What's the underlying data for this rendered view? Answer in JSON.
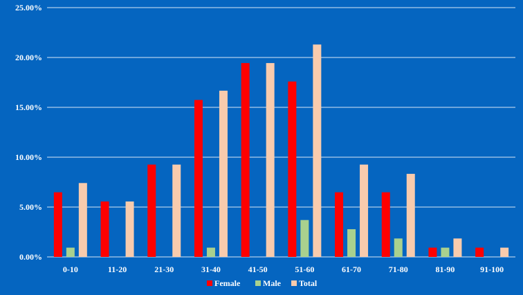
{
  "chart_data": {
    "type": "bar",
    "title": "",
    "xlabel": "",
    "ylabel": "",
    "categories": [
      "0-10",
      "11-20",
      "21-30",
      "31-40",
      "41-50",
      "51-60",
      "61-70",
      "71-80",
      "81-90",
      "91-100"
    ],
    "series": [
      {
        "name": "Female",
        "color": "#FF0000",
        "values": [
          6.48,
          5.56,
          9.26,
          15.74,
          19.44,
          17.59,
          6.48,
          6.48,
          0.93,
          0.93
        ]
      },
      {
        "name": "Male",
        "color": "#A9D18E",
        "values": [
          0.93,
          0,
          0,
          0.93,
          0,
          3.7,
          2.78,
          1.85,
          0.93,
          0
        ]
      },
      {
        "name": "Total",
        "color": "#F8CBAD",
        "values": [
          7.41,
          5.56,
          9.26,
          16.67,
          19.44,
          21.3,
          9.26,
          8.33,
          1.85,
          0.93
        ]
      }
    ],
    "ylim": [
      0,
      25
    ],
    "yticks": [
      "0.00%",
      "5.00%",
      "10.00%",
      "15.00%",
      "20.00%",
      "25.00%"
    ],
    "grid": true,
    "legend": "bottom",
    "background": "#0565C0",
    "gridline_color": "#FFFFFF"
  }
}
